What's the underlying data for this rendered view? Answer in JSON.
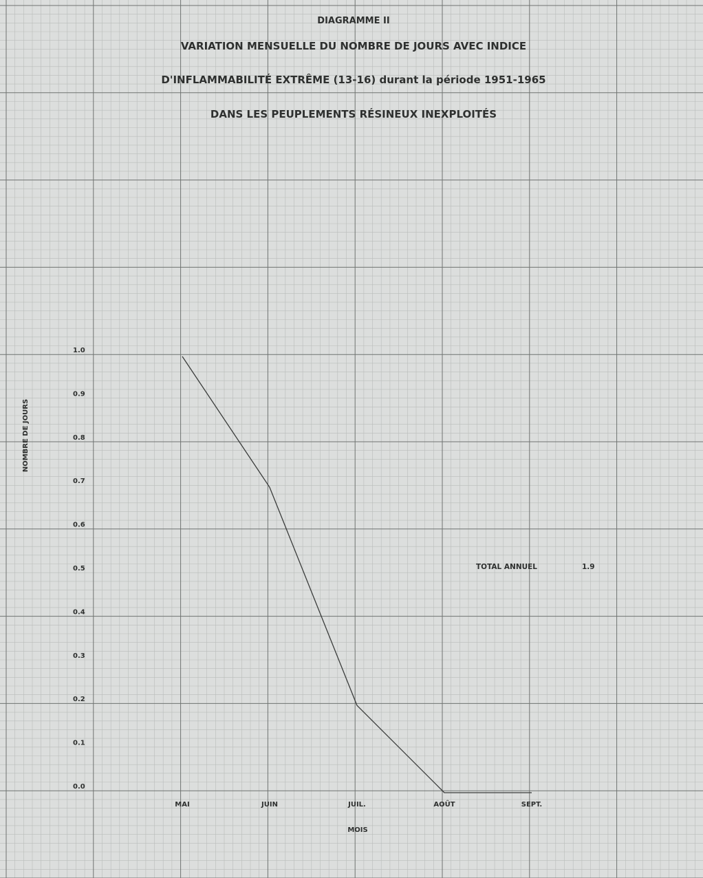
{
  "chart_data": {
    "type": "line",
    "title": "DIAGRAMME II",
    "subtitle_lines": [
      "VARIATION MENSUELLE DU NOMBRE DE JOURS AVEC INDICE",
      "D'INFLAMMABILITÉ EXTRÊME (13-16) durant la période 1951-1965",
      "DANS LES PEUPLEMENTS RÉSINEUX INEXPLOITÉS"
    ],
    "xlabel": "MOIS",
    "ylabel": "NOMBRE DE JOURS",
    "categories": [
      "MAI",
      "JUIN",
      "JUIL.",
      "AOÛT",
      "SEPT."
    ],
    "series": [
      {
        "values": [
          1.0,
          0.7,
          0.2,
          0.0,
          0.0
        ]
      }
    ],
    "ylim": [
      0.0,
      1.0
    ],
    "yticks": [
      "0.0",
      "0.1",
      "0.2",
      "0.3",
      "0.4",
      "0.5",
      "0.6",
      "0.7",
      "0.8",
      "0.9",
      "1.0"
    ],
    "annotation": {
      "label": "TOTAL ANNUEL",
      "value": "1.9"
    },
    "grid": true,
    "colors": {
      "background": "#dcdedd",
      "grid_minor": "#b9bcba",
      "grid_major": "#6f7371",
      "line": "#3a3c3b",
      "text": "#2e302f"
    }
  }
}
